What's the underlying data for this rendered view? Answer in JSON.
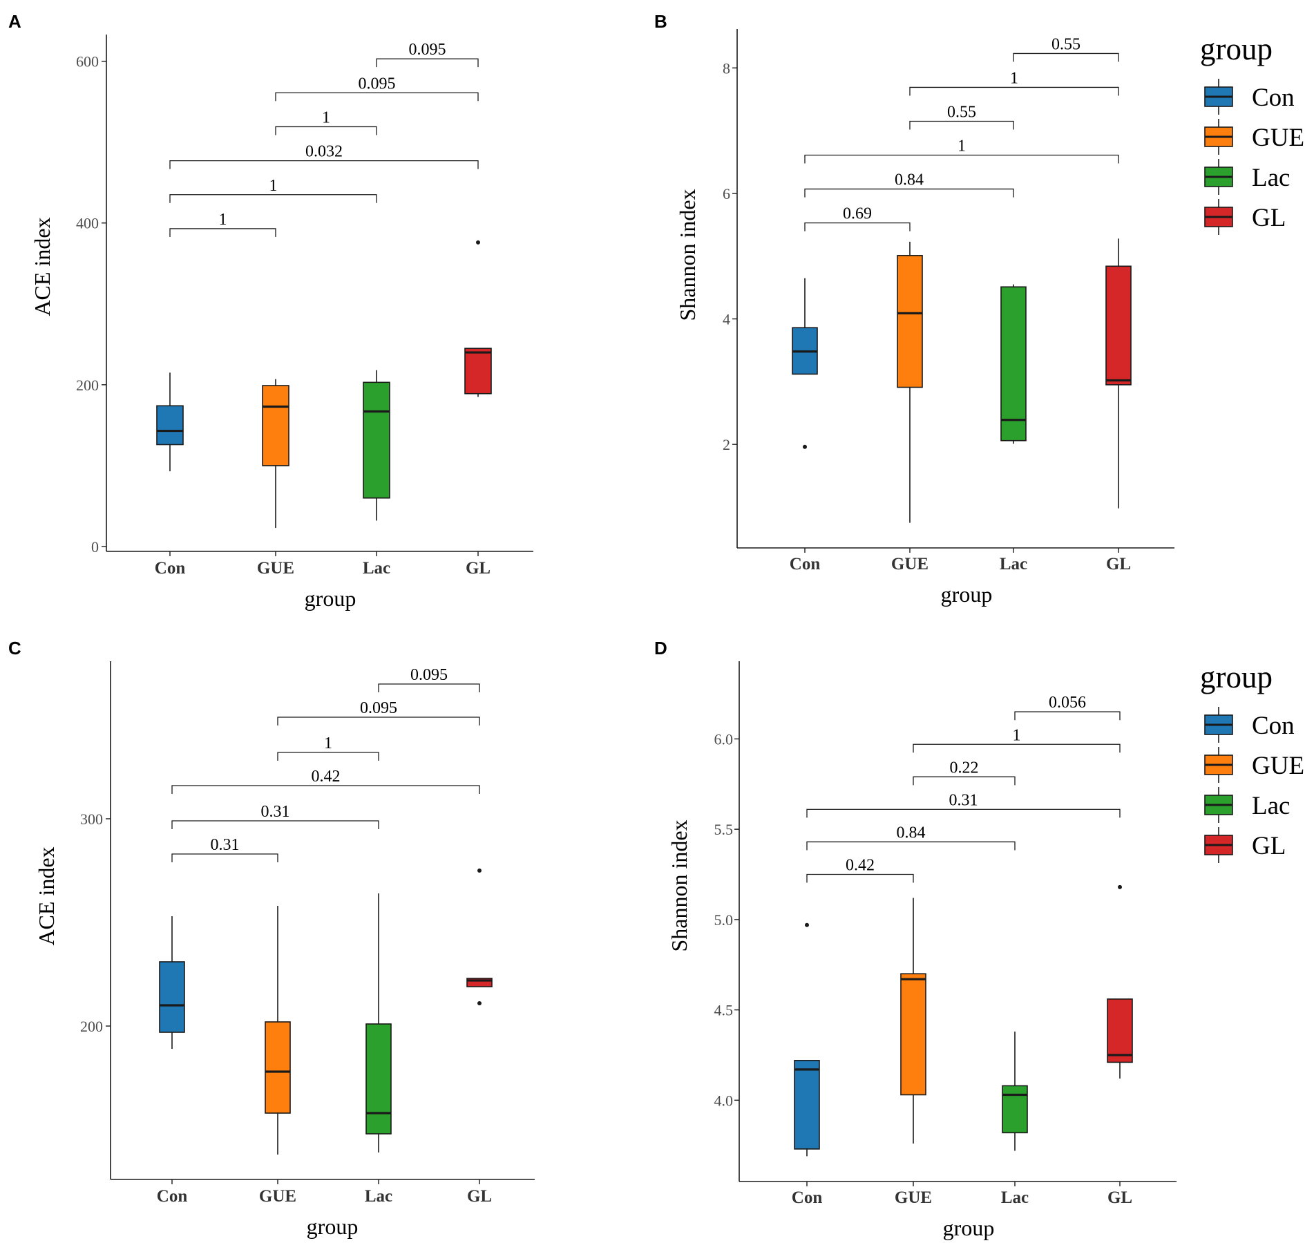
{
  "colors": {
    "Con": "#1f77b4",
    "GUE": "#ff7f0e",
    "Lac": "#2ca02c",
    "GL": "#d62728",
    "ink": "#1a1a1a",
    "tick_text": "#4d4d4d"
  },
  "legend": {
    "title": "group",
    "items": [
      {
        "label": "Con",
        "color": "#1f77b4"
      },
      {
        "label": "GUE",
        "color": "#ff7f0e"
      },
      {
        "label": "Lac",
        "color": "#2ca02c"
      },
      {
        "label": "GL",
        "color": "#d62728"
      }
    ]
  },
  "chart_data": [
    {
      "panel": "A",
      "type": "box",
      "xlabel": "group",
      "ylabel": "ACE index",
      "categories": [
        "Con",
        "GUE",
        "Lac",
        "GL"
      ],
      "yticks": [
        0,
        200,
        400,
        600
      ],
      "ylim": [
        -6,
        633
      ],
      "boxes": [
        {
          "group": "Con",
          "min": 93,
          "q1": 126,
          "median": 143,
          "q3": 174,
          "max": 215,
          "outliers": []
        },
        {
          "group": "GUE",
          "min": 23,
          "q1": 100,
          "median": 173,
          "q3": 199,
          "max": 207,
          "outliers": []
        },
        {
          "group": "Lac",
          "min": 32,
          "q1": 60,
          "median": 167,
          "q3": 203,
          "max": 218,
          "outliers": []
        },
        {
          "group": "GL",
          "min": 185,
          "q1": 189,
          "median": 240,
          "q3": 245,
          "max": 245,
          "outliers": [
            376
          ]
        }
      ],
      "comparisons": [
        {
          "from": "Con",
          "to": "GUE",
          "p": "1",
          "y": 393
        },
        {
          "from": "Con",
          "to": "Lac",
          "p": "1",
          "y": 435
        },
        {
          "from": "Con",
          "to": "GL",
          "p": "0.032",
          "y": 477
        },
        {
          "from": "GUE",
          "to": "Lac",
          "p": "1",
          "y": 519
        },
        {
          "from": "GUE",
          "to": "GL",
          "p": "0.095",
          "y": 561
        },
        {
          "from": "Lac",
          "to": "GL",
          "p": "0.095",
          "y": 603
        }
      ]
    },
    {
      "panel": "B",
      "type": "box",
      "xlabel": "group",
      "ylabel": "Shannon index",
      "categories": [
        "Con",
        "GUE",
        "Lac",
        "GL"
      ],
      "yticks": [
        2,
        4,
        6,
        8
      ],
      "ylim": [
        0.35,
        8.62
      ],
      "boxes": [
        {
          "group": "Con",
          "min": 3.12,
          "q1": 3.12,
          "median": 3.48,
          "q3": 3.86,
          "max": 4.65,
          "outliers": [
            1.96
          ]
        },
        {
          "group": "GUE",
          "min": 0.75,
          "q1": 2.91,
          "median": 4.09,
          "q3": 5.01,
          "max": 5.23,
          "outliers": []
        },
        {
          "group": "Lac",
          "min": 2.01,
          "q1": 2.06,
          "median": 2.39,
          "q3": 4.51,
          "max": 4.55,
          "outliers": []
        },
        {
          "group": "GL",
          "min": 0.98,
          "q1": 2.95,
          "median": 3.02,
          "q3": 4.84,
          "max": 5.28,
          "outliers": []
        }
      ],
      "comparisons": [
        {
          "from": "Con",
          "to": "GUE",
          "p": "0.69",
          "y": 5.53
        },
        {
          "from": "Con",
          "to": "Lac",
          "p": "0.84",
          "y": 6.07
        },
        {
          "from": "Con",
          "to": "GL",
          "p": "1",
          "y": 6.61
        },
        {
          "from": "GUE",
          "to": "Lac",
          "p": "0.55",
          "y": 7.15
        },
        {
          "from": "GUE",
          "to": "GL",
          "p": "1",
          "y": 7.69
        },
        {
          "from": "Lac",
          "to": "GL",
          "p": "0.55",
          "y": 8.23
        }
      ]
    },
    {
      "panel": "C",
      "type": "box",
      "xlabel": "group",
      "ylabel": "ACE index",
      "categories": [
        "Con",
        "GUE",
        "Lac",
        "GL"
      ],
      "yticks": [
        200,
        300
      ],
      "ylim": [
        126,
        376
      ],
      "boxes": [
        {
          "group": "Con",
          "min": 189,
          "q1": 197,
          "median": 210,
          "q3": 231,
          "max": 253,
          "outliers": []
        },
        {
          "group": "GUE",
          "min": 138,
          "q1": 158,
          "median": 178,
          "q3": 202,
          "max": 258,
          "outliers": []
        },
        {
          "group": "Lac",
          "min": 139,
          "q1": 148,
          "median": 158,
          "q3": 201,
          "max": 264,
          "outliers": []
        },
        {
          "group": "GL",
          "min": 219,
          "q1": 219,
          "median": 222,
          "q3": 223,
          "max": 223,
          "outliers": [
            275,
            211
          ]
        }
      ],
      "comparisons": [
        {
          "from": "Con",
          "to": "GUE",
          "p": "0.31",
          "y": 283
        },
        {
          "from": "Con",
          "to": "Lac",
          "p": "0.31",
          "y": 299
        },
        {
          "from": "Con",
          "to": "GL",
          "p": "0.42",
          "y": 316
        },
        {
          "from": "GUE",
          "to": "Lac",
          "p": "1",
          "y": 332
        },
        {
          "from": "GUE",
          "to": "GL",
          "p": "0.095",
          "y": 349
        },
        {
          "from": "Lac",
          "to": "GL",
          "p": "0.095",
          "y": 365
        }
      ]
    },
    {
      "panel": "D",
      "type": "box",
      "xlabel": "group",
      "ylabel": "Shannon index",
      "categories": [
        "Con",
        "GUE",
        "Lac",
        "GL"
      ],
      "yticks": [
        "4.0",
        "4.5",
        "5.0",
        "5.5",
        "6.0"
      ],
      "ylim": [
        3.55,
        6.43
      ],
      "boxes": [
        {
          "group": "Con",
          "min": 3.69,
          "q1": 3.73,
          "median": 4.17,
          "q3": 4.22,
          "max": 4.22,
          "outliers": [
            4.97
          ]
        },
        {
          "group": "GUE",
          "min": 3.76,
          "q1": 4.03,
          "median": 4.67,
          "q3": 4.7,
          "max": 5.12,
          "outliers": []
        },
        {
          "group": "Lac",
          "min": 3.72,
          "q1": 3.82,
          "median": 4.03,
          "q3": 4.08,
          "max": 4.38,
          "outliers": []
        },
        {
          "group": "GL",
          "min": 4.12,
          "q1": 4.21,
          "median": 4.25,
          "q3": 4.56,
          "max": 4.56,
          "outliers": [
            5.18
          ]
        }
      ],
      "comparisons": [
        {
          "from": "Con",
          "to": "GUE",
          "p": "0.42",
          "y": 5.25
        },
        {
          "from": "Con",
          "to": "Lac",
          "p": "0.84",
          "y": 5.43
        },
        {
          "from": "Con",
          "to": "GL",
          "p": "0.31",
          "y": 5.61
        },
        {
          "from": "GUE",
          "to": "Lac",
          "p": "0.22",
          "y": 5.79
        },
        {
          "from": "GUE",
          "to": "GL",
          "p": "1",
          "y": 5.97
        },
        {
          "from": "Lac",
          "to": "GL",
          "p": "0.056",
          "y": 6.15
        }
      ]
    }
  ]
}
